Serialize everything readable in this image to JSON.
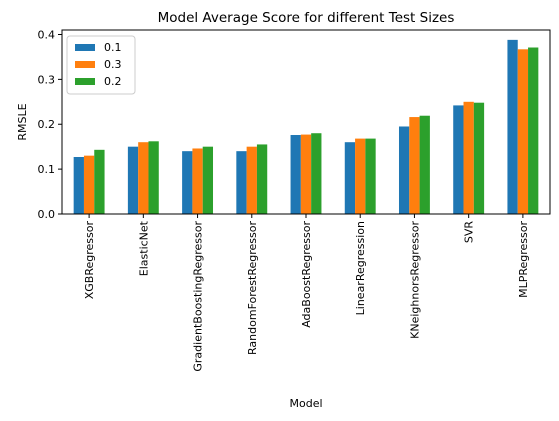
{
  "chart_data": {
    "type": "bar",
    "title": "Model Average Score for different Test Sizes",
    "xlabel": "Model",
    "ylabel": "RMSLE",
    "ylim": [
      0,
      0.41
    ],
    "yticks": [
      0.0,
      0.1,
      0.2,
      0.3,
      0.4
    ],
    "ytick_labels": [
      "0.0",
      "0.1",
      "0.2",
      "0.3",
      "0.4"
    ],
    "categories": [
      "XGBRegressor",
      "ElasticNet",
      "GradientBoostingRegressor",
      "RandomForestRegressor",
      "AdaBoostRegressor",
      "LinearRegression",
      "KNeighnorsRegressor",
      "SVR",
      "MLPRegressor"
    ],
    "series": [
      {
        "name": "0.1",
        "color": "#1f77b4",
        "values": [
          0.127,
          0.15,
          0.14,
          0.14,
          0.176,
          0.16,
          0.195,
          0.242,
          0.388
        ]
      },
      {
        "name": "0.3",
        "color": "#ff7f0e",
        "values": [
          0.13,
          0.16,
          0.146,
          0.15,
          0.177,
          0.168,
          0.216,
          0.25,
          0.367
        ]
      },
      {
        "name": "0.2",
        "color": "#2ca02c",
        "values": [
          0.143,
          0.162,
          0.15,
          0.155,
          0.18,
          0.168,
          0.219,
          0.248,
          0.371
        ]
      }
    ],
    "grid": false,
    "legend_position": "top-left"
  }
}
